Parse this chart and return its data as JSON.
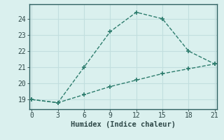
{
  "line1_x": [
    0,
    3,
    6,
    9,
    12,
    15,
    18,
    21
  ],
  "line1_y": [
    19.0,
    18.8,
    21.0,
    23.2,
    24.4,
    24.0,
    22.0,
    21.2
  ],
  "line2_x": [
    0,
    3,
    6,
    9,
    12,
    15,
    18,
    21
  ],
  "line2_y": [
    19.0,
    18.8,
    19.3,
    19.8,
    20.2,
    20.6,
    20.9,
    21.2
  ],
  "line_color": "#2e7d6e",
  "bg_color": "#daf0ee",
  "grid_color": "#c2dede",
  "spine_color": "#2e6060",
  "tick_color": "#2e4848",
  "xlabel": "Humidex (Indice chaleur)",
  "xticks": [
    0,
    3,
    6,
    9,
    12,
    15,
    18,
    21
  ],
  "yticks": [
    19,
    20,
    21,
    22,
    23,
    24
  ],
  "xlim": [
    -0.3,
    21.3
  ],
  "ylim": [
    18.4,
    24.9
  ],
  "xlabel_fontsize": 7.5,
  "tick_fontsize": 7
}
